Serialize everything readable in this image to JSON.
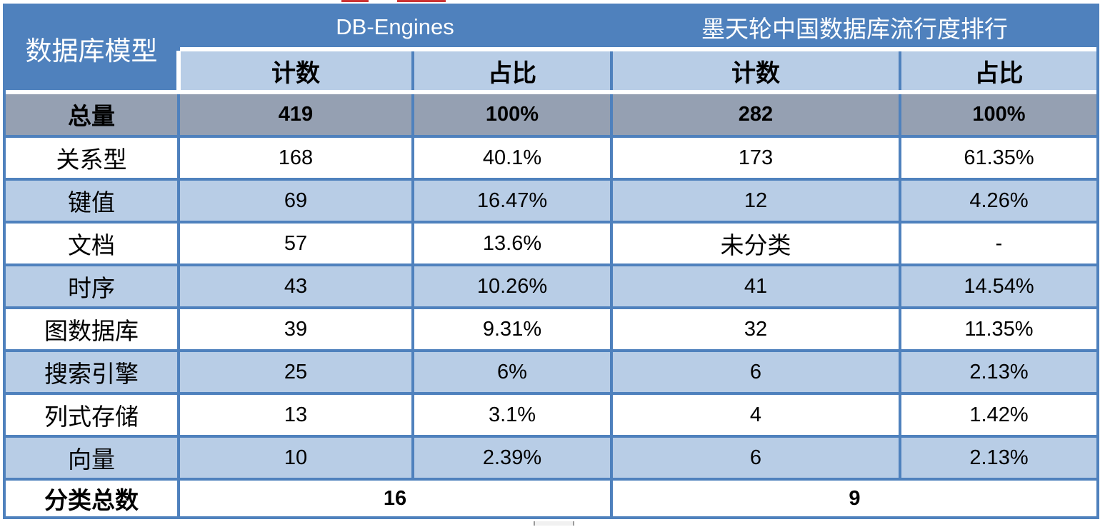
{
  "table": {
    "corner_header": "数据库模型",
    "group_headers": [
      {
        "label": "DB-Engines"
      },
      {
        "label": "墨天轮中国数据库流行度排行"
      }
    ],
    "sub_headers": [
      "计数",
      "占比",
      "计数",
      "占比"
    ],
    "total_row": {
      "label": "总量",
      "values": [
        "419",
        "100%",
        "282",
        "100%"
      ]
    },
    "rows": [
      {
        "label": "关系型",
        "values": [
          "168",
          "40.1%",
          "173",
          "61.35%"
        ]
      },
      {
        "label": "键值",
        "values": [
          "69",
          "16.47%",
          "12",
          "4.26%"
        ]
      },
      {
        "label": "文档",
        "values": [
          "57",
          "13.6%",
          "未分类",
          "-"
        ]
      },
      {
        "label": "时序",
        "values": [
          "43",
          "10.26%",
          "41",
          "14.54%"
        ]
      },
      {
        "label": "图数据库",
        "values": [
          "39",
          "9.31%",
          "32",
          "11.35%"
        ]
      },
      {
        "label": "搜索引擎",
        "values": [
          "25",
          "6%",
          "6",
          "2.13%"
        ]
      },
      {
        "label": "列式存储",
        "values": [
          "13",
          "3.1%",
          "4",
          "1.42%"
        ]
      },
      {
        "label": "向量",
        "values": [
          "10",
          "2.39%",
          "6",
          "2.13%"
        ]
      }
    ],
    "footer_row": {
      "label": "分类总数",
      "values": [
        "16",
        "9"
      ]
    }
  },
  "colors": {
    "header_blue": "#4f81bd",
    "subheader_blue": "#b8cde6",
    "row_alt_blue": "#b8cde6",
    "total_grey": "#95a0b2",
    "border_blue": "#4f81bd",
    "text_dark": "#000000",
    "header_text": "#ffffff",
    "red_mark": "#cc3333"
  },
  "chart_data": {
    "type": "table",
    "title": "数据库模型 — DB-Engines vs 墨天轮中国数据库流行度排行",
    "columns": [
      "数据库模型",
      "DB-Engines 计数",
      "DB-Engines 占比",
      "墨天轮 计数",
      "墨天轮 占比"
    ],
    "rows": [
      [
        "总量",
        "419",
        "100%",
        "282",
        "100%"
      ],
      [
        "关系型",
        "168",
        "40.1%",
        "173",
        "61.35%"
      ],
      [
        "键值",
        "69",
        "16.47%",
        "12",
        "4.26%"
      ],
      [
        "文档",
        "57",
        "13.6%",
        "未分类",
        "-"
      ],
      [
        "时序",
        "43",
        "10.26%",
        "41",
        "14.54%"
      ],
      [
        "图数据库",
        "39",
        "9.31%",
        "32",
        "11.35%"
      ],
      [
        "搜索引擎",
        "25",
        "6%",
        "6",
        "2.13%"
      ],
      [
        "列式存储",
        "13",
        "3.1%",
        "4",
        "1.42%"
      ],
      [
        "向量",
        "10",
        "2.39%",
        "6",
        "2.13%"
      ],
      [
        "分类总数",
        "16",
        "",
        "9",
        ""
      ]
    ]
  }
}
